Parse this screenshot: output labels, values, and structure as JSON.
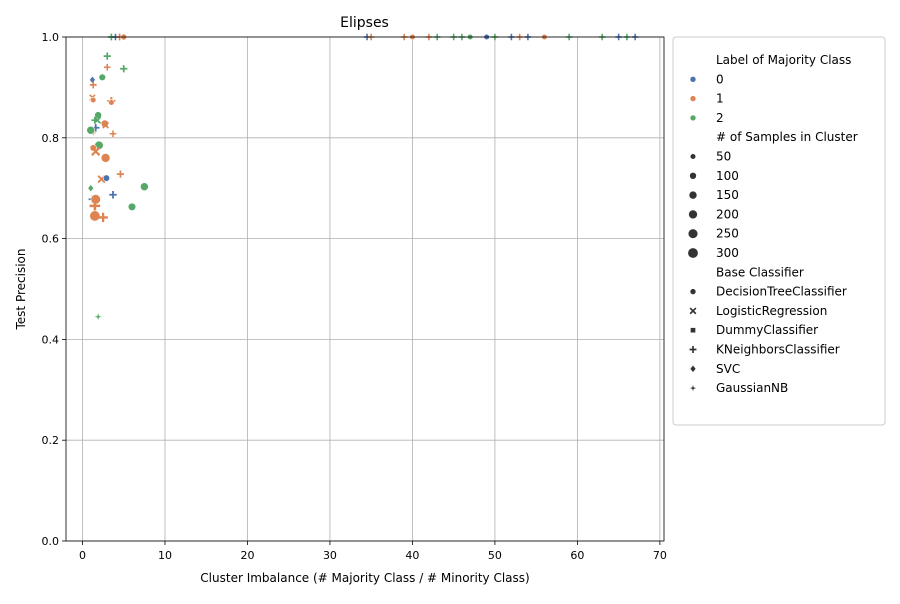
{
  "chart_data": {
    "type": "scatter",
    "title": "Elipses",
    "xlabel": "Cluster Imbalance (# Majority Class / # Minority Class)",
    "ylabel": "Test Precision",
    "xlim": [
      -2,
      70.5
    ],
    "ylim": [
      0.0,
      1.0
    ],
    "xticks": [
      0,
      10,
      20,
      30,
      40,
      50,
      60,
      70
    ],
    "yticks": [
      0.0,
      0.2,
      0.4,
      0.6,
      0.8,
      1.0
    ],
    "xtick_labels": [
      "0",
      "10",
      "20",
      "30",
      "40",
      "50",
      "60",
      "70"
    ],
    "ytick_labels": [
      "0.0",
      "0.2",
      "0.4",
      "0.6",
      "0.8",
      "1.0"
    ],
    "grid": true,
    "legend_position": "outside-upper-right",
    "legend": {
      "hue_title": "Label of Majority Class",
      "hue": [
        {
          "label": "0",
          "color": "#4c72b0"
        },
        {
          "label": "1",
          "color": "#dd8452"
        },
        {
          "label": "2",
          "color": "#55a868"
        }
      ],
      "size_title": "# of Samples in Cluster",
      "sizes": [
        {
          "label": "50",
          "value": 50
        },
        {
          "label": "100",
          "value": 100
        },
        {
          "label": "150",
          "value": 150
        },
        {
          "label": "200",
          "value": 200
        },
        {
          "label": "250",
          "value": 250
        },
        {
          "label": "300",
          "value": 300
        }
      ],
      "style_title": "Base Classifier",
      "styles": [
        {
          "label": "DecisionTreeClassifier",
          "marker": "circle"
        },
        {
          "label": "LogisticRegression",
          "marker": "x"
        },
        {
          "label": "DummyClassifier",
          "marker": "square"
        },
        {
          "label": "KNeighborsClassifier",
          "marker": "plus"
        },
        {
          "label": "SVC",
          "marker": "diamond"
        },
        {
          "label": "GaussianNB",
          "marker": "star"
        }
      ]
    },
    "points": [
      {
        "x": 1.2,
        "y": 0.915,
        "cls": "0",
        "marker": "diamond",
        "n": 60
      },
      {
        "x": 1.3,
        "y": 0.905,
        "cls": "1",
        "marker": "plus",
        "n": 60
      },
      {
        "x": 1.2,
        "y": 0.88,
        "cls": "1",
        "marker": "x",
        "n": 50
      },
      {
        "x": 1.3,
        "y": 0.875,
        "cls": "1",
        "marker": "circle",
        "n": 50
      },
      {
        "x": 2.4,
        "y": 0.92,
        "cls": "2",
        "marker": "circle",
        "n": 90
      },
      {
        "x": 3.0,
        "y": 0.962,
        "cls": "2",
        "marker": "plus",
        "n": 70
      },
      {
        "x": 3.0,
        "y": 0.94,
        "cls": "1",
        "marker": "plus",
        "n": 50
      },
      {
        "x": 5.0,
        "y": 0.937,
        "cls": "2",
        "marker": "plus",
        "n": 70
      },
      {
        "x": 3.5,
        "y": 0.873,
        "cls": "1",
        "marker": "plus",
        "n": 100
      },
      {
        "x": 3.5,
        "y": 0.87,
        "cls": "1",
        "marker": "circle",
        "n": 50
      },
      {
        "x": 1.5,
        "y": 0.835,
        "cls": "2",
        "marker": "plus",
        "n": 60
      },
      {
        "x": 1.9,
        "y": 0.845,
        "cls": "2",
        "marker": "circle",
        "n": 100
      },
      {
        "x": 1.8,
        "y": 0.835,
        "cls": "2",
        "marker": "x",
        "n": 80
      },
      {
        "x": 1.6,
        "y": 0.82,
        "cls": "0",
        "marker": "plus",
        "n": 80
      },
      {
        "x": 1.3,
        "y": 0.81,
        "cls": "1",
        "marker": "star",
        "n": 60
      },
      {
        "x": 1.0,
        "y": 0.815,
        "cls": "2",
        "marker": "circle",
        "n": 150
      },
      {
        "x": 2.7,
        "y": 0.828,
        "cls": "1",
        "marker": "circle",
        "n": 120
      },
      {
        "x": 2.8,
        "y": 0.825,
        "cls": "1",
        "marker": "x",
        "n": 60
      },
      {
        "x": 3.7,
        "y": 0.808,
        "cls": "1",
        "marker": "plus",
        "n": 50
      },
      {
        "x": 2.0,
        "y": 0.785,
        "cls": "2",
        "marker": "circle",
        "n": 180
      },
      {
        "x": 1.3,
        "y": 0.78,
        "cls": "1",
        "marker": "circle",
        "n": 80
      },
      {
        "x": 1.6,
        "y": 0.773,
        "cls": "1",
        "marker": "x",
        "n": 150
      },
      {
        "x": 2.8,
        "y": 0.76,
        "cls": "1",
        "marker": "circle",
        "n": 200
      },
      {
        "x": 4.6,
        "y": 0.728,
        "cls": "1",
        "marker": "plus",
        "n": 70
      },
      {
        "x": 2.3,
        "y": 0.718,
        "cls": "1",
        "marker": "x",
        "n": 100
      },
      {
        "x": 2.9,
        "y": 0.72,
        "cls": "0",
        "marker": "circle",
        "n": 80
      },
      {
        "x": 1.0,
        "y": 0.7,
        "cls": "2",
        "marker": "diamond",
        "n": 60
      },
      {
        "x": 7.5,
        "y": 0.703,
        "cls": "2",
        "marker": "circle",
        "n": 150
      },
      {
        "x": 3.7,
        "y": 0.687,
        "cls": "0",
        "marker": "plus",
        "n": 80
      },
      {
        "x": 1.2,
        "y": 0.678,
        "cls": "0",
        "marker": "plus",
        "n": 80
      },
      {
        "x": 1.6,
        "y": 0.678,
        "cls": "1",
        "marker": "circle",
        "n": 250
      },
      {
        "x": 1.5,
        "y": 0.665,
        "cls": "1",
        "marker": "plus",
        "n": 220
      },
      {
        "x": 6.0,
        "y": 0.663,
        "cls": "2",
        "marker": "circle",
        "n": 130
      },
      {
        "x": 1.5,
        "y": 0.645,
        "cls": "1",
        "marker": "circle",
        "n": 300
      },
      {
        "x": 2.5,
        "y": 0.642,
        "cls": "1",
        "marker": "plus",
        "n": 160
      },
      {
        "x": 1.9,
        "y": 0.445,
        "cls": "2",
        "marker": "star",
        "n": 80
      },
      {
        "x": 3.5,
        "y": 1.0,
        "cls": "2",
        "marker": "plus",
        "n": 60
      },
      {
        "x": 4.0,
        "y": 1.0,
        "cls": "0",
        "marker": "plus",
        "n": 50
      },
      {
        "x": 4.5,
        "y": 1.0,
        "cls": "1",
        "marker": "plus",
        "n": 60
      },
      {
        "x": 5.0,
        "y": 1.0,
        "cls": "1",
        "marker": "circle",
        "n": 60
      },
      {
        "x": 34.5,
        "y": 1.0,
        "cls": "0",
        "marker": "plus",
        "n": 50
      },
      {
        "x": 35.0,
        "y": 1.0,
        "cls": "1",
        "marker": "plus",
        "n": 50
      },
      {
        "x": 39.0,
        "y": 1.0,
        "cls": "1",
        "marker": "plus",
        "n": 50
      },
      {
        "x": 40.0,
        "y": 1.0,
        "cls": "1",
        "marker": "circle",
        "n": 50
      },
      {
        "x": 42.0,
        "y": 1.0,
        "cls": "1",
        "marker": "plus",
        "n": 50
      },
      {
        "x": 43.0,
        "y": 1.0,
        "cls": "2",
        "marker": "plus",
        "n": 50
      },
      {
        "x": 45.0,
        "y": 1.0,
        "cls": "2",
        "marker": "plus",
        "n": 50
      },
      {
        "x": 46.0,
        "y": 1.0,
        "cls": "2",
        "marker": "plus",
        "n": 50
      },
      {
        "x": 47.0,
        "y": 1.0,
        "cls": "2",
        "marker": "circle",
        "n": 50
      },
      {
        "x": 49.0,
        "y": 1.0,
        "cls": "0",
        "marker": "circle",
        "n": 50
      },
      {
        "x": 50.0,
        "y": 1.0,
        "cls": "2",
        "marker": "plus",
        "n": 50
      },
      {
        "x": 52.0,
        "y": 1.0,
        "cls": "0",
        "marker": "plus",
        "n": 50
      },
      {
        "x": 53.0,
        "y": 1.0,
        "cls": "1",
        "marker": "plus",
        "n": 50
      },
      {
        "x": 54.0,
        "y": 1.0,
        "cls": "0",
        "marker": "plus",
        "n": 50
      },
      {
        "x": 56.0,
        "y": 1.0,
        "cls": "1",
        "marker": "circle",
        "n": 50
      },
      {
        "x": 59.0,
        "y": 1.0,
        "cls": "2",
        "marker": "plus",
        "n": 50
      },
      {
        "x": 63.0,
        "y": 1.0,
        "cls": "2",
        "marker": "plus",
        "n": 50
      },
      {
        "x": 65.0,
        "y": 1.0,
        "cls": "0",
        "marker": "plus",
        "n": 50
      },
      {
        "x": 66.0,
        "y": 1.0,
        "cls": "2",
        "marker": "plus",
        "n": 50
      },
      {
        "x": 67.0,
        "y": 1.0,
        "cls": "0",
        "marker": "plus",
        "n": 50
      }
    ]
  }
}
